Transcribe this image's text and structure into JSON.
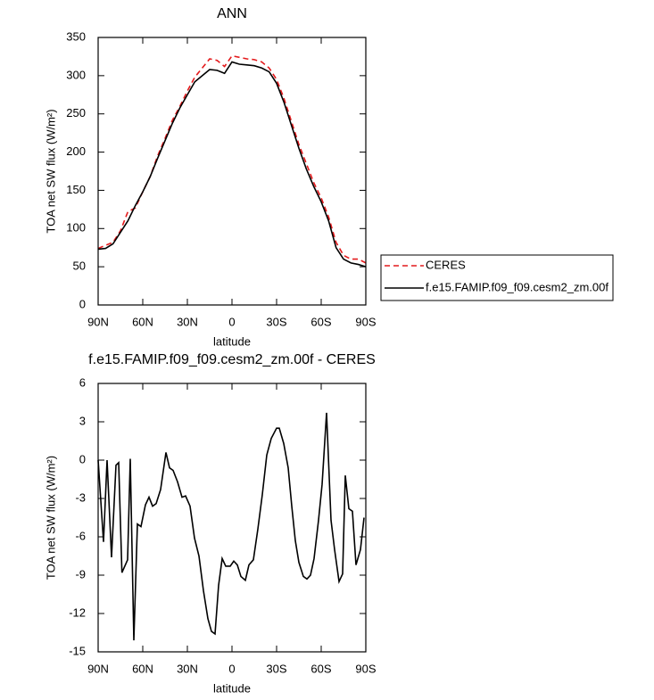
{
  "chart_data": [
    {
      "type": "line",
      "title": "ANN",
      "xlabel": "latitude",
      "ylabel": "TOA net SW flux (W/m²)",
      "x": [
        90,
        85,
        80,
        75,
        70,
        65,
        60,
        55,
        50,
        45,
        40,
        35,
        30,
        25,
        20,
        15,
        10,
        5,
        0,
        -5,
        -10,
        -15,
        -20,
        -25,
        -30,
        -35,
        -40,
        -45,
        -50,
        -55,
        -60,
        -65,
        -70,
        -75,
        -80,
        -85,
        -90
      ],
      "xlim": [
        90,
        -90
      ],
      "xticks": [
        {
          "value": 90,
          "label": "90N"
        },
        {
          "value": 60,
          "label": "60N"
        },
        {
          "value": 30,
          "label": "30N"
        },
        0,
        {
          "value": -30,
          "label": "30S"
        },
        {
          "value": -60,
          "label": "60S"
        },
        {
          "value": -90,
          "label": "90S"
        }
      ],
      "ylim": [
        0,
        350
      ],
      "yticks": [
        0,
        50,
        100,
        150,
        200,
        250,
        300,
        350
      ],
      "legend": "right",
      "series": [
        {
          "name": "CERES",
          "color": "#e41a1c",
          "style": "dashed",
          "values": [
            74,
            78,
            82,
            97,
            122,
            127,
            148,
            168,
            195,
            218,
            242,
            260,
            280,
            298,
            310,
            322,
            320,
            312,
            326,
            324,
            322,
            321,
            318,
            310,
            295,
            270,
            240,
            210,
            185,
            160,
            140,
            115,
            82,
            65,
            60,
            60,
            55
          ]
        },
        {
          "name": "f.e15.FAMIP.f09_f09.cesm2_zm.00f",
          "color": "#000000",
          "style": "solid",
          "values": [
            73,
            74,
            80,
            95,
            110,
            130,
            148,
            168,
            192,
            215,
            238,
            258,
            275,
            292,
            300,
            308,
            307,
            303,
            318,
            315,
            314,
            313,
            310,
            305,
            290,
            265,
            235,
            205,
            178,
            155,
            135,
            110,
            75,
            60,
            55,
            53,
            50
          ]
        }
      ]
    },
    {
      "type": "line",
      "title": "f.e15.FAMIP.f09_f09.cesm2_zm.00f - CERES",
      "xlabel": "latitude",
      "ylabel": "TOA net SW flux (W/m²)",
      "x": [
        90,
        86.4,
        84,
        81,
        78,
        76.2,
        74,
        70.2,
        68.4,
        66,
        63.6,
        61.2,
        58.2,
        55.8,
        53.4,
        51,
        48,
        44.4,
        42,
        39.6,
        36.6,
        33.6,
        31.2,
        28.2,
        25.2,
        22.2,
        19.2,
        16.2,
        13.8,
        11.4,
        9,
        6.6,
        4.2,
        1.2,
        -1.2,
        -3.6,
        -6,
        -9,
        -11.4,
        -14.4,
        -17.4,
        -20.4,
        -23.4,
        -26.4,
        -30,
        -31.8,
        -34.8,
        -37.8,
        -40.2,
        -42.6,
        -45,
        -48,
        -50.4,
        -52.8,
        -55.2,
        -58.2,
        -60.6,
        -63.6,
        -66.6,
        -69,
        -72,
        -74.4,
        -76.2,
        -78.6,
        -81,
        -83.4,
        -86.4,
        -88.8
      ],
      "values": [
        0,
        -6.4,
        0,
        -7.6,
        -0.4,
        -0.2,
        -8.8,
        -7.8,
        0.1,
        -14.1,
        -5.0,
        -5.2,
        -3.5,
        -2.9,
        -3.6,
        -3.4,
        -2.3,
        0.6,
        -0.6,
        -0.8,
        -1.7,
        -2.9,
        -2.8,
        -3.6,
        -6.1,
        -7.5,
        -10.2,
        -12.4,
        -13.4,
        -13.6,
        -9.8,
        -7.7,
        -8.3,
        -8.3,
        -7.9,
        -8.2,
        -9.1,
        -9.4,
        -8.2,
        -7.8,
        -5.4,
        -2.7,
        0.4,
        1.7,
        2.5,
        2.5,
        1.3,
        -0.6,
        -3.6,
        -6.3,
        -8.0,
        -9.1,
        -9.3,
        -9.0,
        -7.7,
        -4.7,
        -1.9,
        3.7,
        -4.7,
        -7.0,
        -9.5,
        -8.9,
        -1.2,
        -3.8,
        -4.0,
        -8.2,
        -7.0,
        -4.5
      ],
      "color": "#000000",
      "style": "solid",
      "xlim": [
        90,
        -90
      ],
      "xticks": [
        {
          "value": 90,
          "label": "90N"
        },
        {
          "value": 60,
          "label": "60N"
        },
        {
          "value": 30,
          "label": "30N"
        },
        0,
        {
          "value": -30,
          "label": "30S"
        },
        {
          "value": -60,
          "label": "60S"
        },
        {
          "value": -90,
          "label": "90S"
        }
      ],
      "ylim": [
        -15,
        6
      ],
      "yticks": [
        -15,
        -12,
        -9,
        -6,
        -3,
        0,
        3,
        6
      ]
    }
  ]
}
